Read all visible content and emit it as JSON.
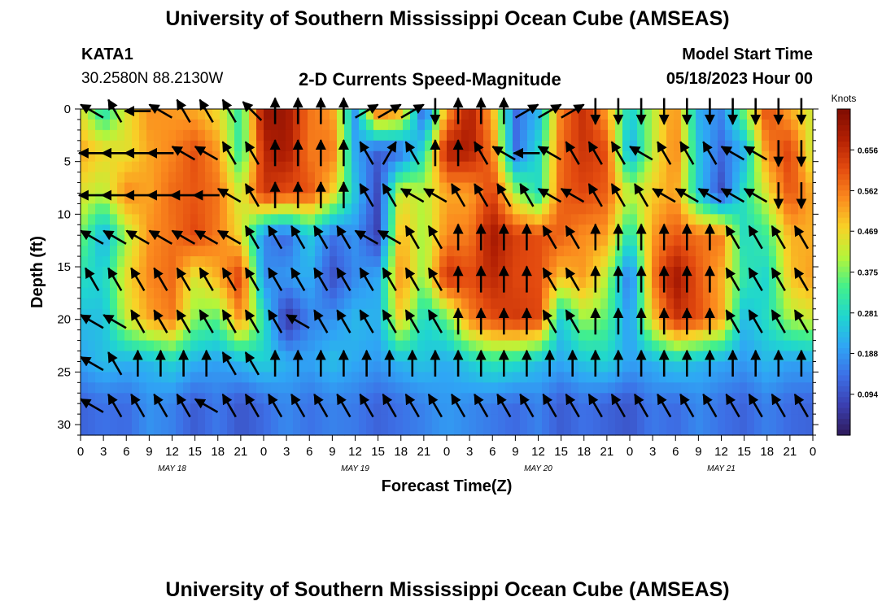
{
  "header": {
    "title": "University of Southern Mississippi Ocean Cube (AMSEAS)",
    "station": "KATA1",
    "coords": "30.2580N  88.2130W",
    "plot_title": "2-D Currents Speed-Magnitude",
    "model_start_label": "Model Start Time",
    "model_start_value": "05/18/2023 Hour 00",
    "footer_title": "University of Southern Mississippi Ocean Cube (AMSEAS)"
  },
  "colors": {
    "scale": [
      "#2e1a5a",
      "#3b3fb0",
      "#3d6fe6",
      "#2fa6f5",
      "#1fd6d0",
      "#43f08b",
      "#b6f53a",
      "#f8d227",
      "#fb8a1e",
      "#e34a0f",
      "#b11f03",
      "#7e0c02"
    ],
    "arrow": "#000000",
    "frame": "#000000"
  },
  "chart_data": {
    "type": "heatmap",
    "title": "2-D Currents Speed-Magnitude",
    "xlabel": "Forecast Time(Z)",
    "ylabel": "Depth (ft)",
    "x_ticks": [
      "0",
      "3",
      "6",
      "9",
      "12",
      "15",
      "18",
      "21",
      "0",
      "3",
      "6",
      "9",
      "12",
      "15",
      "18",
      "21",
      "0",
      "3",
      "6",
      "9",
      "12",
      "15",
      "18",
      "21",
      "0",
      "3",
      "6",
      "9",
      "12",
      "15",
      "18",
      "21",
      "0"
    ],
    "x_range_hours": [
      0,
      96
    ],
    "day_labels": [
      {
        "label": "MAY 18",
        "hour": 12
      },
      {
        "label": "MAY 19",
        "hour": 36
      },
      {
        "label": "MAY 20",
        "hour": 60
      },
      {
        "label": "MAY 21",
        "hour": 84
      }
    ],
    "y_ticks": [
      0,
      5,
      10,
      15,
      20,
      25,
      30
    ],
    "y_range_ft": [
      0,
      31
    ],
    "y_inverted": true,
    "colorbar": {
      "unit": "Knots",
      "tick_labels": [
        "0.656",
        "0.562",
        "0.469",
        "0.375",
        "0.281",
        "0.188",
        "0.094"
      ],
      "tick_values": [
        0.656,
        0.562,
        0.469,
        0.375,
        0.281,
        0.188,
        0.094
      ],
      "range": [
        0.0,
        0.75
      ]
    },
    "grid_hours": [
      0,
      3,
      6,
      9,
      12,
      15,
      18,
      21,
      24,
      27,
      30,
      33,
      36,
      39,
      42,
      45,
      48,
      51,
      54,
      57,
      60,
      63,
      66,
      69,
      72,
      75,
      78,
      81,
      84,
      87,
      90,
      93,
      96
    ],
    "grid_depths_ft": [
      0,
      4,
      8,
      12,
      16,
      20,
      24,
      28
    ],
    "speed_knots": [
      [
        0.45,
        0.28,
        0.45,
        0.54,
        0.53,
        0.51,
        0.46,
        0.31,
        0.72,
        0.71,
        0.57,
        0.53,
        0.19,
        0.61,
        0.54,
        0.09,
        0.52,
        0.69,
        0.51,
        0.13,
        0.22,
        0.56,
        0.66,
        0.52,
        0.26,
        0.41,
        0.55,
        0.21,
        0.17,
        0.38,
        0.62,
        0.51,
        0.43
      ],
      [
        0.52,
        0.47,
        0.45,
        0.52,
        0.55,
        0.61,
        0.53,
        0.3,
        0.67,
        0.7,
        0.56,
        0.57,
        0.21,
        0.11,
        0.13,
        0.29,
        0.69,
        0.69,
        0.56,
        0.13,
        0.28,
        0.58,
        0.65,
        0.61,
        0.19,
        0.42,
        0.56,
        0.25,
        0.13,
        0.22,
        0.55,
        0.63,
        0.41
      ],
      [
        0.45,
        0.41,
        0.55,
        0.52,
        0.58,
        0.6,
        0.57,
        0.42,
        0.65,
        0.61,
        0.61,
        0.48,
        0.25,
        0.08,
        0.45,
        0.41,
        0.52,
        0.52,
        0.63,
        0.4,
        0.29,
        0.59,
        0.62,
        0.59,
        0.41,
        0.48,
        0.53,
        0.25,
        0.09,
        0.3,
        0.45,
        0.61,
        0.51
      ],
      [
        0.38,
        0.21,
        0.4,
        0.54,
        0.57,
        0.62,
        0.56,
        0.46,
        0.17,
        0.12,
        0.26,
        0.14,
        0.18,
        0.07,
        0.52,
        0.39,
        0.55,
        0.56,
        0.7,
        0.63,
        0.61,
        0.59,
        0.54,
        0.53,
        0.28,
        0.53,
        0.6,
        0.57,
        0.56,
        0.28,
        0.33,
        0.51,
        0.51
      ],
      [
        0.29,
        0.27,
        0.46,
        0.55,
        0.58,
        0.44,
        0.51,
        0.64,
        0.17,
        0.19,
        0.22,
        0.09,
        0.17,
        0.21,
        0.55,
        0.38,
        0.66,
        0.61,
        0.67,
        0.62,
        0.61,
        0.49,
        0.53,
        0.41,
        0.13,
        0.56,
        0.71,
        0.6,
        0.51,
        0.31,
        0.27,
        0.49,
        0.53
      ],
      [
        0.24,
        0.24,
        0.43,
        0.52,
        0.56,
        0.38,
        0.35,
        0.55,
        0.3,
        0.04,
        0.16,
        0.18,
        0.23,
        0.22,
        0.49,
        0.27,
        0.35,
        0.55,
        0.61,
        0.64,
        0.62,
        0.25,
        0.4,
        0.35,
        0.18,
        0.48,
        0.65,
        0.61,
        0.52,
        0.23,
        0.29,
        0.4,
        0.43
      ],
      [
        0.2,
        0.24,
        0.22,
        0.23,
        0.27,
        0.22,
        0.2,
        0.23,
        0.27,
        0.22,
        0.2,
        0.24,
        0.21,
        0.19,
        0.23,
        0.25,
        0.21,
        0.26,
        0.31,
        0.29,
        0.24,
        0.21,
        0.25,
        0.27,
        0.2,
        0.22,
        0.26,
        0.23,
        0.21,
        0.19,
        0.23,
        0.2,
        0.21
      ],
      [
        0.12,
        0.14,
        0.13,
        0.18,
        0.16,
        0.11,
        0.15,
        0.1,
        0.13,
        0.17,
        0.14,
        0.16,
        0.15,
        0.12,
        0.14,
        0.16,
        0.19,
        0.17,
        0.15,
        0.13,
        0.16,
        0.11,
        0.14,
        0.12,
        0.1,
        0.15,
        0.13,
        0.17,
        0.14,
        0.12,
        0.16,
        0.13,
        0.12
      ]
    ],
    "direction_deg": [
      [
        300,
        330,
        270,
        300,
        330,
        330,
        330,
        315,
        0,
        0,
        0,
        0,
        60,
        60,
        60,
        180,
        0,
        0,
        0,
        60,
        60,
        60,
        180,
        180,
        180,
        180,
        180,
        180,
        180,
        180,
        180,
        180,
        180
      ],
      [
        270,
        270,
        270,
        270,
        300,
        300,
        330,
        330,
        0,
        0,
        0,
        0,
        330,
        30,
        330,
        0,
        0,
        330,
        300,
        270,
        300,
        330,
        330,
        330,
        300,
        330,
        330,
        330,
        300,
        300,
        180,
        180,
        180
      ],
      [
        270,
        270,
        270,
        270,
        270,
        270,
        300,
        330,
        0,
        0,
        0,
        0,
        330,
        330,
        300,
        300,
        330,
        330,
        330,
        330,
        300,
        300,
        330,
        330,
        330,
        300,
        300,
        300,
        300,
        300,
        180,
        180,
        180
      ],
      [
        300,
        300,
        300,
        300,
        300,
        300,
        300,
        330,
        330,
        330,
        330,
        330,
        300,
        300,
        330,
        330,
        0,
        0,
        0,
        0,
        330,
        330,
        0,
        0,
        0,
        0,
        0,
        0,
        330,
        330,
        330,
        330,
        330
      ],
      [
        330,
        330,
        330,
        330,
        330,
        330,
        330,
        330,
        330,
        330,
        330,
        330,
        330,
        330,
        330,
        330,
        0,
        0,
        0,
        0,
        330,
        330,
        0,
        0,
        0,
        0,
        0,
        0,
        330,
        330,
        330,
        330,
        330
      ],
      [
        300,
        300,
        330,
        330,
        330,
        330,
        330,
        330,
        330,
        300,
        330,
        330,
        330,
        330,
        330,
        330,
        0,
        0,
        0,
        0,
        330,
        330,
        0,
        0,
        0,
        0,
        0,
        0,
        330,
        330,
        330,
        330,
        330
      ],
      [
        300,
        330,
        0,
        0,
        0,
        0,
        330,
        330,
        0,
        0,
        0,
        0,
        0,
        0,
        0,
        0,
        0,
        0,
        0,
        0,
        0,
        0,
        0,
        0,
        0,
        0,
        0,
        0,
        0,
        0,
        0,
        0,
        0
      ],
      [
        300,
        330,
        330,
        330,
        330,
        300,
        330,
        330,
        330,
        330,
        330,
        330,
        330,
        330,
        330,
        330,
        330,
        330,
        330,
        330,
        330,
        330,
        330,
        330,
        330,
        330,
        330,
        330,
        330,
        330,
        330,
        330,
        330
      ]
    ]
  }
}
